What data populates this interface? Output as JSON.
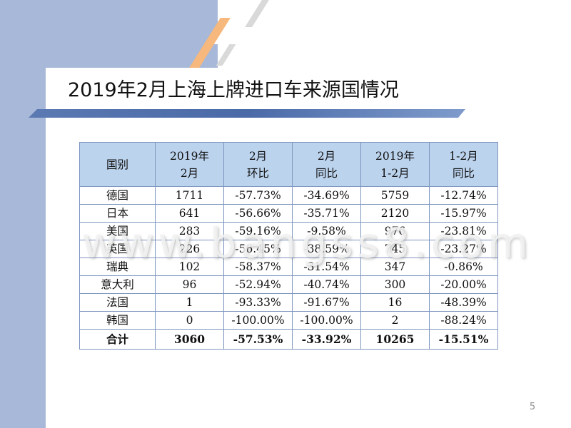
{
  "slide": {
    "title": "2019年2月上海上牌进口车来源国情况",
    "page_number": "5",
    "watermark": "www.bangss8.com"
  },
  "table": {
    "headers": [
      [
        "国别"
      ],
      [
        "2019年",
        "2月"
      ],
      [
        "2月",
        "环比"
      ],
      [
        "2月",
        "同比"
      ],
      [
        "2019年",
        "1-2月"
      ],
      [
        "1-2月",
        "同比"
      ]
    ],
    "rows": [
      [
        "德国",
        "1711",
        "-57.73%",
        "-34.69%",
        "5759",
        "-12.74%"
      ],
      [
        "日本",
        "641",
        "-56.66%",
        "-35.71%",
        "2120",
        "-15.97%"
      ],
      [
        "美国",
        "283",
        "-59.16%",
        "-9.58%",
        "976",
        "-23.81%"
      ],
      [
        "英国",
        "226",
        "-56.45%",
        "-38.59%",
        "745",
        "-23.27%"
      ],
      [
        "瑞典",
        "102",
        "-58.37%",
        "-31.54%",
        "347",
        "-0.86%"
      ],
      [
        "意大利",
        "96",
        "-52.94%",
        "-40.74%",
        "300",
        "-20.00%"
      ],
      [
        "法国",
        "1",
        "-93.33%",
        "-91.67%",
        "16",
        "-48.39%"
      ],
      [
        "韩国",
        "0",
        "-100.00%",
        "-100.00%",
        "2",
        "-88.24%"
      ]
    ],
    "total": [
      "合计",
      "3060",
      "-57.53%",
      "-33.92%",
      "10265",
      "-15.51%"
    ]
  },
  "colors": {
    "left_bar": "#a7b8d8",
    "header_fill": "#bcd3ee",
    "border": "#7e95bf",
    "accent_orange": "#f6b87c",
    "title_rule": "#4a6aa8"
  }
}
